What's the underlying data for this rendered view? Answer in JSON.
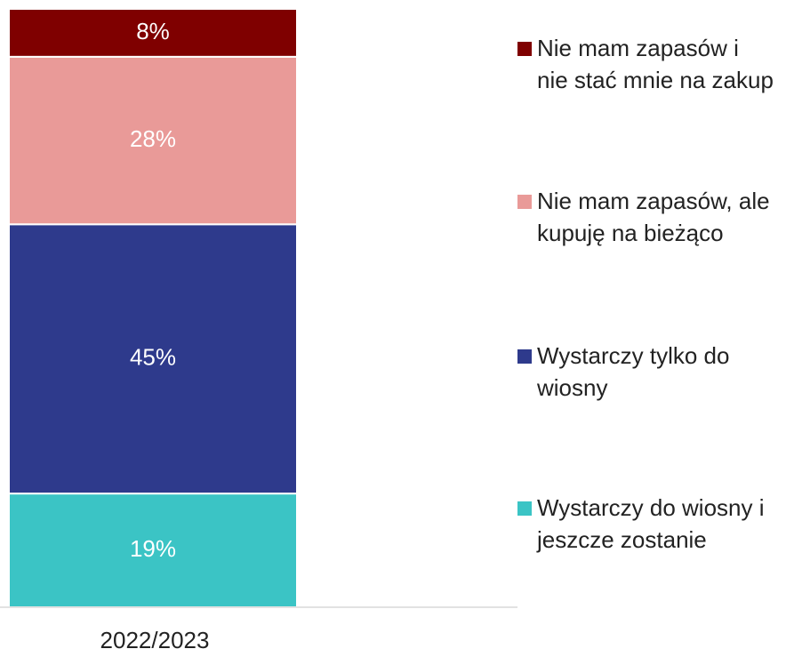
{
  "chart_data": {
    "type": "stacked-bar",
    "categories": [
      "2022/2023"
    ],
    "ylim": [
      0,
      100
    ],
    "series": [
      {
        "name": "Wystarczy do wiosny i jeszcze zostanie",
        "color": "#3bc4c5",
        "values": [
          19
        ],
        "value_labels": [
          "19%"
        ]
      },
      {
        "name": "Wystarczy tylko do wiosny",
        "color": "#2e3a8c",
        "values": [
          45
        ],
        "value_labels": [
          "45%"
        ]
      },
      {
        "name": "Nie mam zapasów, ale kupuję na bieżąco",
        "color": "#e99a98",
        "values": [
          28
        ],
        "value_labels": [
          "28%"
        ]
      },
      {
        "name": "Nie mam zapasów i nie stać mnie na zakup",
        "color": "#7f0000",
        "values": [
          8
        ],
        "value_labels": [
          "8%"
        ]
      }
    ]
  }
}
